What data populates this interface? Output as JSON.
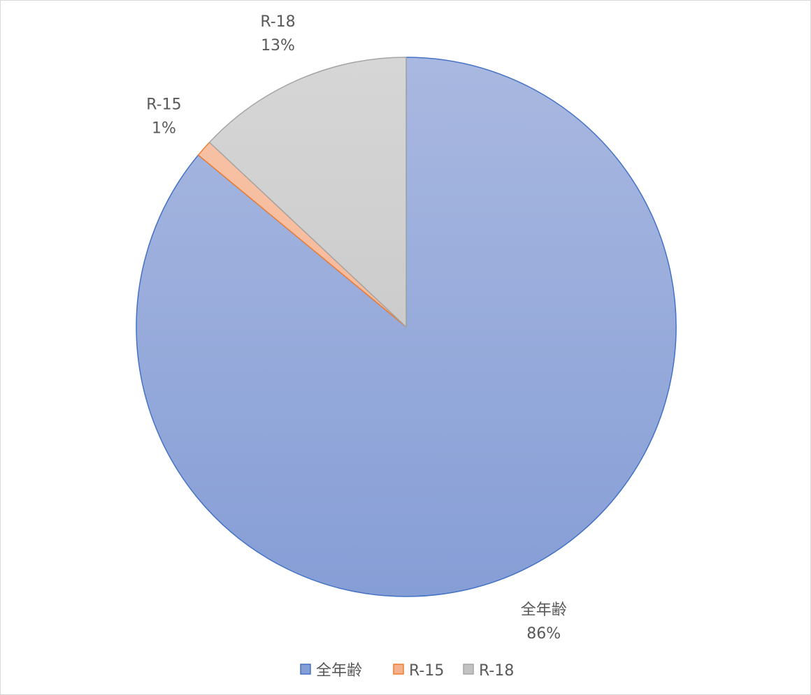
{
  "chart_data": {
    "type": "pie",
    "title": "",
    "categories": [
      "全年齢",
      "R-15",
      "R-18"
    ],
    "values": [
      86,
      1,
      13
    ],
    "data_labels": [
      "86%",
      "1%",
      "13%"
    ],
    "start_angle": "top, clockwise",
    "colors": [
      {
        "fill_top": "#a9b8e0",
        "fill_bottom": "#869ed6",
        "stroke": "#4472c4"
      },
      {
        "fill_top": "#f8c4a8",
        "fill_bottom": "#f5b08c",
        "stroke": "#ed7d31"
      },
      {
        "fill_top": "#d6d6d6",
        "fill_bottom": "#c2c2c2",
        "stroke": "#a5a5a5"
      }
    ],
    "legend": {
      "placement": "bottom",
      "entries": [
        "全年齢",
        "R-15",
        "R-18"
      ]
    }
  }
}
